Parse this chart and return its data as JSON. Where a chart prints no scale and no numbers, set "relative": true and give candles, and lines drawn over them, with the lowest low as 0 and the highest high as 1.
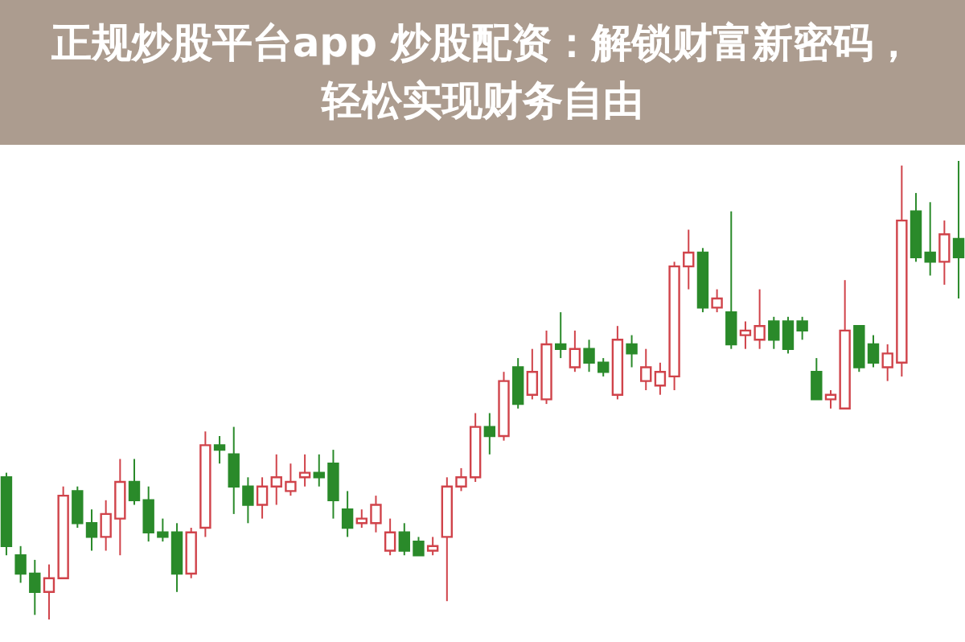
{
  "chart_data": {
    "type": "candlestick",
    "relative": true,
    "title": "正规炒股平台app 炒股配资：解锁财富新密码，轻松实现财务自由",
    "categories": [
      null,
      null,
      null,
      null,
      null,
      null,
      null,
      null,
      null,
      null,
      null,
      null,
      null,
      null,
      null,
      null,
      null,
      null,
      null,
      null,
      null,
      null,
      null,
      null,
      null,
      null,
      null,
      null,
      null,
      null,
      null,
      null,
      null,
      null,
      null,
      null,
      null,
      null,
      null,
      null,
      null,
      null,
      null,
      null,
      null,
      null,
      null,
      null,
      null,
      null,
      null,
      null,
      null,
      null,
      null,
      null,
      null,
      null,
      null,
      null,
      null,
      null,
      null,
      null,
      null,
      null,
      null,
      null
    ],
    "ohlc": [
      [
        0.31,
        0.32,
        0.14,
        0.16
      ],
      [
        0.14,
        0.16,
        0.08,
        0.1
      ],
      [
        0.1,
        0.13,
        0.01,
        0.06
      ],
      [
        0.06,
        0.12,
        0,
        0.09
      ],
      [
        0.09,
        0.29,
        0.09,
        0.27
      ],
      [
        0.28,
        0.29,
        0.2,
        0.21
      ],
      [
        0.21,
        0.24,
        0.15,
        0.18
      ],
      [
        0.18,
        0.26,
        0.15,
        0.23
      ],
      [
        0.22,
        0.35,
        0.14,
        0.3
      ],
      [
        0.3,
        0.35,
        0.25,
        0.26
      ],
      [
        0.26,
        0.29,
        0.17,
        0.19
      ],
      [
        0.19,
        0.22,
        0.17,
        0.18
      ],
      [
        0.19,
        0.21,
        0.06,
        0.1
      ],
      [
        0.1,
        0.2,
        0.09,
        0.19
      ],
      [
        0.2,
        0.41,
        0.18,
        0.38
      ],
      [
        0.38,
        0.4,
        0.34,
        0.37
      ],
      [
        0.36,
        0.42,
        0.23,
        0.29
      ],
      [
        0.29,
        0.31,
        0.21,
        0.25
      ],
      [
        0.25,
        0.31,
        0.22,
        0.29
      ],
      [
        0.29,
        0.36,
        0.25,
        0.31
      ],
      [
        0.28,
        0.34,
        0.27,
        0.3
      ],
      [
        0.31,
        0.36,
        0.29,
        0.32
      ],
      [
        0.32,
        0.36,
        0.29,
        0.31
      ],
      [
        0.34,
        0.37,
        0.22,
        0.26
      ],
      [
        0.24,
        0.28,
        0.18,
        0.2
      ],
      [
        0.21,
        0.24,
        0.2,
        0.22
      ],
      [
        0.21,
        0.27,
        0.19,
        0.25
      ],
      [
        0.15,
        0.22,
        0.14,
        0.19
      ],
      [
        0.19,
        0.21,
        0.14,
        0.15
      ],
      [
        0.17,
        0.18,
        0.14,
        0.14
      ],
      [
        0.15,
        0.18,
        0.14,
        0.16
      ],
      [
        0.18,
        0.31,
        0.04,
        0.29
      ],
      [
        0.29,
        0.33,
        0.28,
        0.31
      ],
      [
        0.31,
        0.45,
        0.3,
        0.42
      ],
      [
        0.42,
        0.45,
        0.36,
        0.4
      ],
      [
        0.4,
        0.54,
        0.39,
        0.52
      ],
      [
        0.55,
        0.57,
        0.46,
        0.47
      ],
      [
        0.49,
        0.59,
        0.48,
        0.54
      ],
      [
        0.48,
        0.63,
        0.47,
        0.6
      ],
      [
        0.6,
        0.67,
        0.57,
        0.59
      ],
      [
        0.55,
        0.63,
        0.54,
        0.59
      ],
      [
        0.59,
        0.61,
        0.54,
        0.56
      ],
      [
        0.56,
        0.57,
        0.53,
        0.54
      ],
      [
        0.49,
        0.64,
        0.48,
        0.61
      ],
      [
        0.6,
        0.62,
        0.55,
        0.58
      ],
      [
        0.52,
        0.59,
        0.5,
        0.55
      ],
      [
        0.51,
        0.56,
        0.49,
        0.54
      ],
      [
        0.53,
        0.78,
        0.5,
        0.77
      ],
      [
        0.77,
        0.85,
        0.72,
        0.8
      ],
      [
        0.8,
        0.81,
        0.67,
        0.68
      ],
      [
        0.68,
        0.72,
        0.67,
        0.7
      ],
      [
        0.67,
        0.89,
        0.59,
        0.6
      ],
      [
        0.62,
        0.65,
        0.59,
        0.63
      ],
      [
        0.61,
        0.72,
        0.59,
        0.64
      ],
      [
        0.65,
        0.66,
        0.59,
        0.61
      ],
      [
        0.65,
        0.66,
        0.58,
        0.59
      ],
      [
        0.65,
        0.66,
        0.61,
        0.63
      ],
      [
        0.54,
        0.57,
        0.48,
        0.48
      ],
      [
        0.48,
        0.5,
        0.46,
        0.49
      ],
      [
        0.46,
        0.74,
        0.46,
        0.63
      ],
      [
        0.64,
        0.64,
        0.54,
        0.55
      ],
      [
        0.6,
        0.62,
        0.55,
        0.56
      ],
      [
        0.55,
        0.6,
        0.52,
        0.58
      ],
      [
        0.56,
        0.99,
        0.53,
        0.87
      ],
      [
        0.89,
        0.93,
        0.78,
        0.79
      ],
      [
        0.8,
        0.91,
        0.75,
        0.78
      ],
      [
        0.78,
        0.87,
        0.73,
        0.84
      ],
      [
        0.83,
        1,
        0.7,
        0.79
      ]
    ],
    "colors": [
      "#2a8a2a",
      "#2a8a2a",
      "#2a8a2a",
      "#d0434a",
      "#d0434a",
      "#2a8a2a",
      "#2a8a2a",
      "#d0434a",
      "#d0434a",
      "#2a8a2a",
      "#2a8a2a",
      "#2a8a2a",
      "#2a8a2a",
      "#d0434a",
      "#d0434a",
      "#2a8a2a",
      "#2a8a2a",
      "#2a8a2a",
      "#d0434a",
      "#d0434a",
      "#d0434a",
      "#d0434a",
      "#2a8a2a",
      "#2a8a2a",
      "#2a8a2a",
      "#d0434a",
      "#d0434a",
      "#d0434a",
      "#2a8a2a",
      "#2a8a2a",
      "#d0434a",
      "#d0434a",
      "#d0434a",
      "#d0434a",
      "#2a8a2a",
      "#d0434a",
      "#2a8a2a",
      "#d0434a",
      "#d0434a",
      "#2a8a2a",
      "#d0434a",
      "#2a8a2a",
      "#2a8a2a",
      "#d0434a",
      "#2a8a2a",
      "#d0434a",
      "#d0434a",
      "#d0434a",
      "#d0434a",
      "#2a8a2a",
      "#d0434a",
      "#2a8a2a",
      "#d0434a",
      "#d0434a",
      "#2a8a2a",
      "#2a8a2a",
      "#2a8a2a",
      "#2a8a2a",
      "#d0434a",
      "#d0434a",
      "#2a8a2a",
      "#2a8a2a",
      "#d0434a",
      "#d0434a",
      "#2a8a2a",
      "#2a8a2a",
      "#d0434a",
      "#2a8a2a"
    ]
  }
}
